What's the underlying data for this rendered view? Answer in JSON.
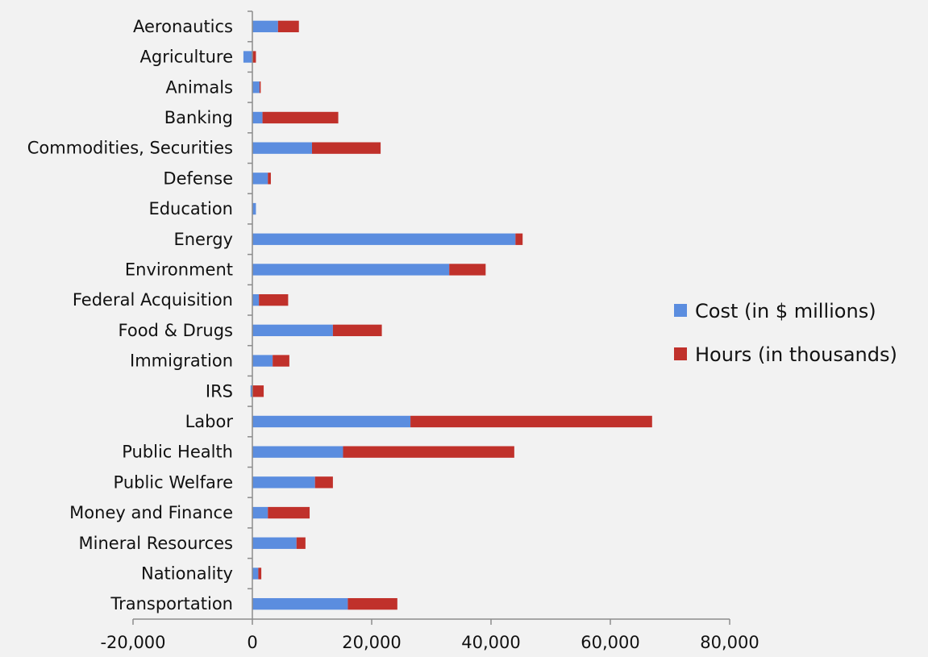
{
  "chart_data": {
    "type": "bar",
    "orientation": "horizontal",
    "stacked": true,
    "categories": [
      "Aeronautics",
      "Agriculture",
      "Animals",
      "Banking",
      "Commodities, Securities",
      "Defense",
      "Education",
      "Energy",
      "Environment",
      "Federal Acquisition",
      "Food & Drugs",
      "Immigration",
      "IRS",
      "Labor",
      "Public Health",
      "Public Welfare",
      "Money and Finance",
      "Mineral Resources",
      "Nationality",
      "Transportation"
    ],
    "series": [
      {
        "name": "Cost (in $ millions)",
        "color": "#5b8ddf",
        "values": [
          4300,
          -1500,
          1200,
          1700,
          10000,
          2600,
          600,
          44100,
          33000,
          1100,
          13500,
          3400,
          -300,
          26500,
          15200,
          10500,
          2600,
          7400,
          1000,
          16000
        ]
      },
      {
        "name": "Hours (in thousands)",
        "color": "#c0312b",
        "values": [
          3500,
          600,
          200,
          12700,
          11500,
          500,
          0,
          1200,
          6100,
          4900,
          8200,
          2800,
          1900,
          40500,
          28700,
          3000,
          7000,
          1500,
          500,
          8300
        ]
      }
    ],
    "xlim": [
      -20000,
      80000
    ],
    "xticks": [
      "-20,000",
      "0",
      "20,000",
      "40,000",
      "60,000",
      "80,000"
    ],
    "xtick_values": [
      -20000,
      0,
      20000,
      40000,
      60000,
      80000
    ],
    "grid": false,
    "legend_position": "right"
  }
}
